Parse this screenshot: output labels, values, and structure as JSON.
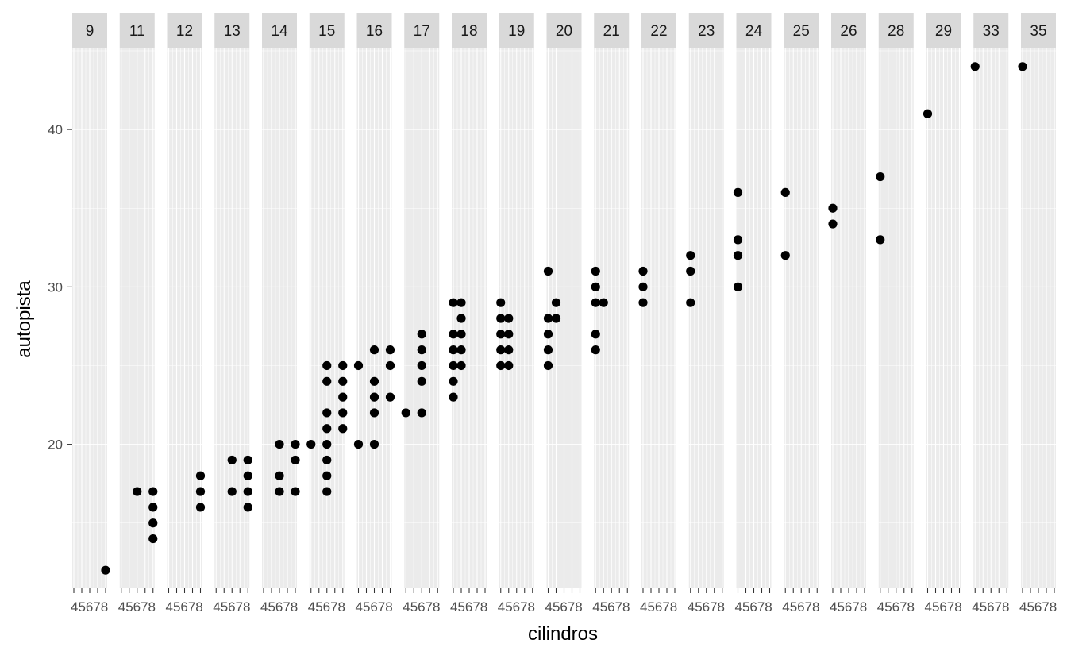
{
  "chart_data": {
    "type": "scatter",
    "facet_by": "cty",
    "xlabel": "cilindros",
    "ylabel": "autopista",
    "x_ticks": [
      4,
      5,
      6,
      7,
      8
    ],
    "y_ticks": [
      20,
      30,
      40
    ],
    "ylim": [
      10.85,
      45.15
    ],
    "xlim": [
      3.8,
      8.2
    ],
    "grid": true,
    "panels": [
      {
        "label": "9",
        "points": [
          [
            8,
            12
          ]
        ]
      },
      {
        "label": "11",
        "points": [
          [
            6,
            17
          ],
          [
            8,
            17
          ],
          [
            8,
            16
          ],
          [
            8,
            15
          ],
          [
            8,
            14
          ]
        ]
      },
      {
        "label": "12",
        "points": [
          [
            8,
            18
          ],
          [
            8,
            17
          ],
          [
            8,
            16
          ]
        ]
      },
      {
        "label": "13",
        "points": [
          [
            6,
            19
          ],
          [
            6,
            17
          ],
          [
            8,
            19
          ],
          [
            8,
            18
          ],
          [
            8,
            17
          ],
          [
            8,
            16
          ]
        ]
      },
      {
        "label": "14",
        "points": [
          [
            6,
            20
          ],
          [
            6,
            18
          ],
          [
            6,
            17
          ],
          [
            8,
            20
          ],
          [
            8,
            19
          ],
          [
            8,
            17
          ]
        ]
      },
      {
        "label": "15",
        "points": [
          [
            4,
            20
          ],
          [
            6,
            25
          ],
          [
            6,
            24
          ],
          [
            6,
            22
          ],
          [
            6,
            21
          ],
          [
            6,
            20
          ],
          [
            6,
            19
          ],
          [
            6,
            18
          ],
          [
            6,
            17
          ],
          [
            8,
            25
          ],
          [
            8,
            24
          ],
          [
            8,
            23
          ],
          [
            8,
            22
          ],
          [
            8,
            21
          ]
        ]
      },
      {
        "label": "16",
        "points": [
          [
            4,
            25
          ],
          [
            4,
            20
          ],
          [
            6,
            26
          ],
          [
            6,
            24
          ],
          [
            6,
            23
          ],
          [
            6,
            22
          ],
          [
            6,
            20
          ],
          [
            8,
            26
          ],
          [
            8,
            25
          ],
          [
            8,
            23
          ]
        ]
      },
      {
        "label": "17",
        "points": [
          [
            4,
            22
          ],
          [
            6,
            27
          ],
          [
            6,
            26
          ],
          [
            6,
            25
          ],
          [
            6,
            24
          ],
          [
            6,
            22
          ]
        ]
      },
      {
        "label": "18",
        "points": [
          [
            4,
            29
          ],
          [
            4,
            27
          ],
          [
            4,
            26
          ],
          [
            4,
            25
          ],
          [
            4,
            24
          ],
          [
            4,
            23
          ],
          [
            5,
            29
          ],
          [
            5,
            28
          ],
          [
            5,
            27
          ],
          [
            5,
            26
          ],
          [
            5,
            25
          ]
        ]
      },
      {
        "label": "19",
        "points": [
          [
            4,
            29
          ],
          [
            4,
            28
          ],
          [
            4,
            27
          ],
          [
            4,
            26
          ],
          [
            4,
            25
          ],
          [
            5,
            28
          ],
          [
            5,
            27
          ],
          [
            5,
            26
          ],
          [
            5,
            25
          ]
        ]
      },
      {
        "label": "20",
        "points": [
          [
            4,
            31
          ],
          [
            4,
            28
          ],
          [
            4,
            27
          ],
          [
            4,
            26
          ],
          [
            4,
            25
          ],
          [
            5,
            29
          ],
          [
            5,
            28
          ]
        ]
      },
      {
        "label": "21",
        "points": [
          [
            4,
            31
          ],
          [
            4,
            30
          ],
          [
            4,
            29
          ],
          [
            4,
            27
          ],
          [
            4,
            26
          ],
          [
            5,
            29
          ]
        ]
      },
      {
        "label": "22",
        "points": [
          [
            4,
            31
          ],
          [
            4,
            30
          ],
          [
            4,
            29
          ]
        ]
      },
      {
        "label": "23",
        "points": [
          [
            4,
            32
          ],
          [
            4,
            31
          ],
          [
            4,
            29
          ]
        ]
      },
      {
        "label": "24",
        "points": [
          [
            4,
            36
          ],
          [
            4,
            33
          ],
          [
            4,
            32
          ],
          [
            4,
            30
          ]
        ]
      },
      {
        "label": "25",
        "points": [
          [
            4,
            36
          ],
          [
            4,
            32
          ]
        ]
      },
      {
        "label": "26",
        "points": [
          [
            4,
            35
          ],
          [
            4,
            34
          ]
        ]
      },
      {
        "label": "28",
        "points": [
          [
            4,
            37
          ],
          [
            4,
            33
          ]
        ]
      },
      {
        "label": "29",
        "points": [
          [
            4,
            41
          ]
        ]
      },
      {
        "label": "33",
        "points": [
          [
            4,
            44
          ]
        ]
      },
      {
        "label": "35",
        "points": [
          [
            4,
            44
          ]
        ]
      }
    ]
  }
}
